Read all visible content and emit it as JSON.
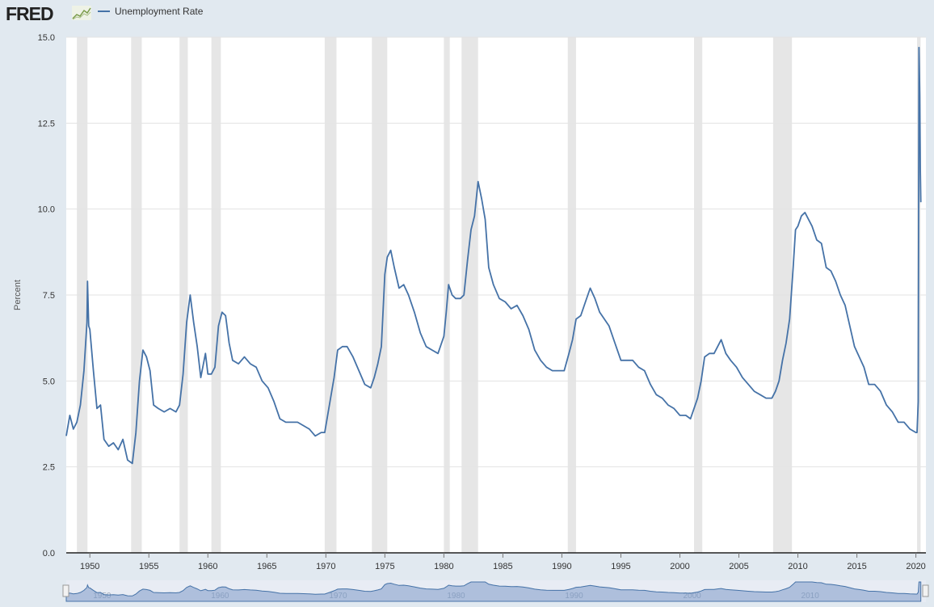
{
  "brand": {
    "logo_text": "FRED"
  },
  "legend": {
    "label": "Unemployment Rate"
  },
  "colors": {
    "line": "#4572a7",
    "recession": "#e6e6e6",
    "background": "#e1e9f0",
    "navigator": "#7e9bc9"
  },
  "icons": {
    "logo": "fred-graph-icon"
  },
  "chart_data": {
    "type": "line",
    "title": "",
    "xlabel": "",
    "ylabel": "Percent",
    "ylim": [
      0.0,
      15.0
    ],
    "yticks": [
      "0.0",
      "2.5",
      "5.0",
      "7.5",
      "10.0",
      "12.5",
      "15.0"
    ],
    "xticks": [
      "1950",
      "1955",
      "1960",
      "1965",
      "1970",
      "1975",
      "1980",
      "1985",
      "1990",
      "1995",
      "2000",
      "2005",
      "2010",
      "2015",
      "2020"
    ],
    "grid": true,
    "legend_position": "top-left",
    "recessions": [
      [
        1948.9,
        1949.8
      ],
      [
        1953.5,
        1954.4
      ],
      [
        1957.6,
        1958.3
      ],
      [
        1960.3,
        1961.1
      ],
      [
        1969.9,
        1970.9
      ],
      [
        1973.9,
        1975.2
      ],
      [
        1980.0,
        1980.5
      ],
      [
        1981.5,
        1982.9
      ],
      [
        1990.5,
        1991.2
      ],
      [
        2001.2,
        2001.9
      ],
      [
        2007.9,
        2009.5
      ],
      [
        2020.1,
        2020.4
      ]
    ],
    "series": [
      {
        "x": [
          1948.0,
          1948.3,
          1948.6,
          1948.9,
          1949.2,
          1949.5,
          1949.75,
          1949.8,
          1949.9,
          1950.0,
          1950.3,
          1950.6,
          1950.9,
          1951.2,
          1951.6,
          1952.0,
          1952.4,
          1952.8,
          1953.2,
          1953.6,
          1953.9,
          1954.2,
          1954.5,
          1954.8,
          1955.1,
          1955.4,
          1955.8,
          1956.3,
          1956.8,
          1957.3,
          1957.6,
          1957.9,
          1958.2,
          1958.5,
          1958.8,
          1959.1,
          1959.4,
          1959.8,
          1960.0,
          1960.3,
          1960.6,
          1960.9,
          1961.2,
          1961.5,
          1961.8,
          1962.1,
          1962.6,
          1963.1,
          1963.6,
          1964.1,
          1964.6,
          1965.1,
          1965.6,
          1966.1,
          1966.6,
          1967.1,
          1967.6,
          1968.1,
          1968.6,
          1969.1,
          1969.6,
          1969.9,
          1970.3,
          1970.7,
          1971.0,
          1971.4,
          1971.8,
          1972.3,
          1972.8,
          1973.3,
          1973.8,
          1974.1,
          1974.4,
          1974.7,
          1975.0,
          1975.2,
          1975.5,
          1975.8,
          1976.2,
          1976.6,
          1977.0,
          1977.5,
          1978.0,
          1978.5,
          1979.0,
          1979.5,
          1980.0,
          1980.2,
          1980.4,
          1980.7,
          1981.0,
          1981.4,
          1981.7,
          1982.0,
          1982.3,
          1982.6,
          1982.9,
          1983.2,
          1983.5,
          1983.8,
          1984.2,
          1984.7,
          1985.2,
          1985.7,
          1986.2,
          1986.7,
          1987.2,
          1987.7,
          1988.2,
          1988.7,
          1989.2,
          1989.7,
          1990.2,
          1990.6,
          1990.9,
          1991.2,
          1991.6,
          1992.0,
          1992.4,
          1992.8,
          1993.2,
          1993.6,
          1994.0,
          1994.5,
          1995.0,
          1995.5,
          1996.0,
          1996.5,
          1997.0,
          1997.5,
          1998.0,
          1998.5,
          1999.0,
          1999.5,
          2000.0,
          2000.5,
          2000.9,
          2001.2,
          2001.5,
          2001.8,
          2002.1,
          2002.5,
          2002.9,
          2003.2,
          2003.5,
          2003.9,
          2004.3,
          2004.8,
          2005.3,
          2005.8,
          2006.3,
          2006.8,
          2007.3,
          2007.8,
          2008.1,
          2008.4,
          2008.7,
          2009.0,
          2009.3,
          2009.6,
          2009.8,
          2010.0,
          2010.3,
          2010.6,
          2010.9,
          2011.2,
          2011.6,
          2012.0,
          2012.4,
          2012.8,
          2013.2,
          2013.6,
          2014.0,
          2014.4,
          2014.8,
          2015.2,
          2015.6,
          2016.0,
          2016.5,
          2017.0,
          2017.5,
          2018.0,
          2018.5,
          2019.0,
          2019.5,
          2020.0,
          2020.1,
          2020.2,
          2020.26,
          2020.33,
          2020.38,
          2020.42
        ],
        "y": [
          3.4,
          4.0,
          3.6,
          3.8,
          4.3,
          5.3,
          6.7,
          7.9,
          6.6,
          6.5,
          5.3,
          4.2,
          4.3,
          3.3,
          3.1,
          3.2,
          3.0,
          3.3,
          2.7,
          2.6,
          3.5,
          5.0,
          5.9,
          5.7,
          5.3,
          4.3,
          4.2,
          4.1,
          4.2,
          4.1,
          4.3,
          5.2,
          6.7,
          7.5,
          6.7,
          6.0,
          5.1,
          5.8,
          5.2,
          5.2,
          5.4,
          6.6,
          7.0,
          6.9,
          6.1,
          5.6,
          5.5,
          5.7,
          5.5,
          5.4,
          5.0,
          4.8,
          4.4,
          3.9,
          3.8,
          3.8,
          3.8,
          3.7,
          3.6,
          3.4,
          3.5,
          3.5,
          4.3,
          5.1,
          5.9,
          6.0,
          6.0,
          5.7,
          5.3,
          4.9,
          4.8,
          5.1,
          5.5,
          6.0,
          8.1,
          8.6,
          8.8,
          8.3,
          7.7,
          7.8,
          7.5,
          7.0,
          6.4,
          6.0,
          5.9,
          5.8,
          6.3,
          7.0,
          7.8,
          7.5,
          7.4,
          7.4,
          7.5,
          8.5,
          9.4,
          9.8,
          10.8,
          10.3,
          9.7,
          8.3,
          7.8,
          7.4,
          7.3,
          7.1,
          7.2,
          6.9,
          6.5,
          5.9,
          5.6,
          5.4,
          5.3,
          5.3,
          5.3,
          5.8,
          6.2,
          6.8,
          6.9,
          7.3,
          7.7,
          7.4,
          7.0,
          6.8,
          6.6,
          6.1,
          5.6,
          5.6,
          5.6,
          5.4,
          5.3,
          4.9,
          4.6,
          4.5,
          4.3,
          4.2,
          4.0,
          4.0,
          3.9,
          4.2,
          4.5,
          5.0,
          5.7,
          5.8,
          5.8,
          6.0,
          6.2,
          5.8,
          5.6,
          5.4,
          5.1,
          4.9,
          4.7,
          4.6,
          4.5,
          4.5,
          4.7,
          5.0,
          5.6,
          6.1,
          6.8,
          8.3,
          9.4,
          9.5,
          9.8,
          9.9,
          9.7,
          9.5,
          9.1,
          9.0,
          8.3,
          8.2,
          7.9,
          7.5,
          7.2,
          6.6,
          6.0,
          5.7,
          5.4,
          4.9,
          4.9,
          4.7,
          4.3,
          4.1,
          3.8,
          3.8,
          3.6,
          3.5,
          3.5,
          4.4,
          14.7,
          13.3,
          11.1,
          10.2
        ]
      }
    ]
  }
}
